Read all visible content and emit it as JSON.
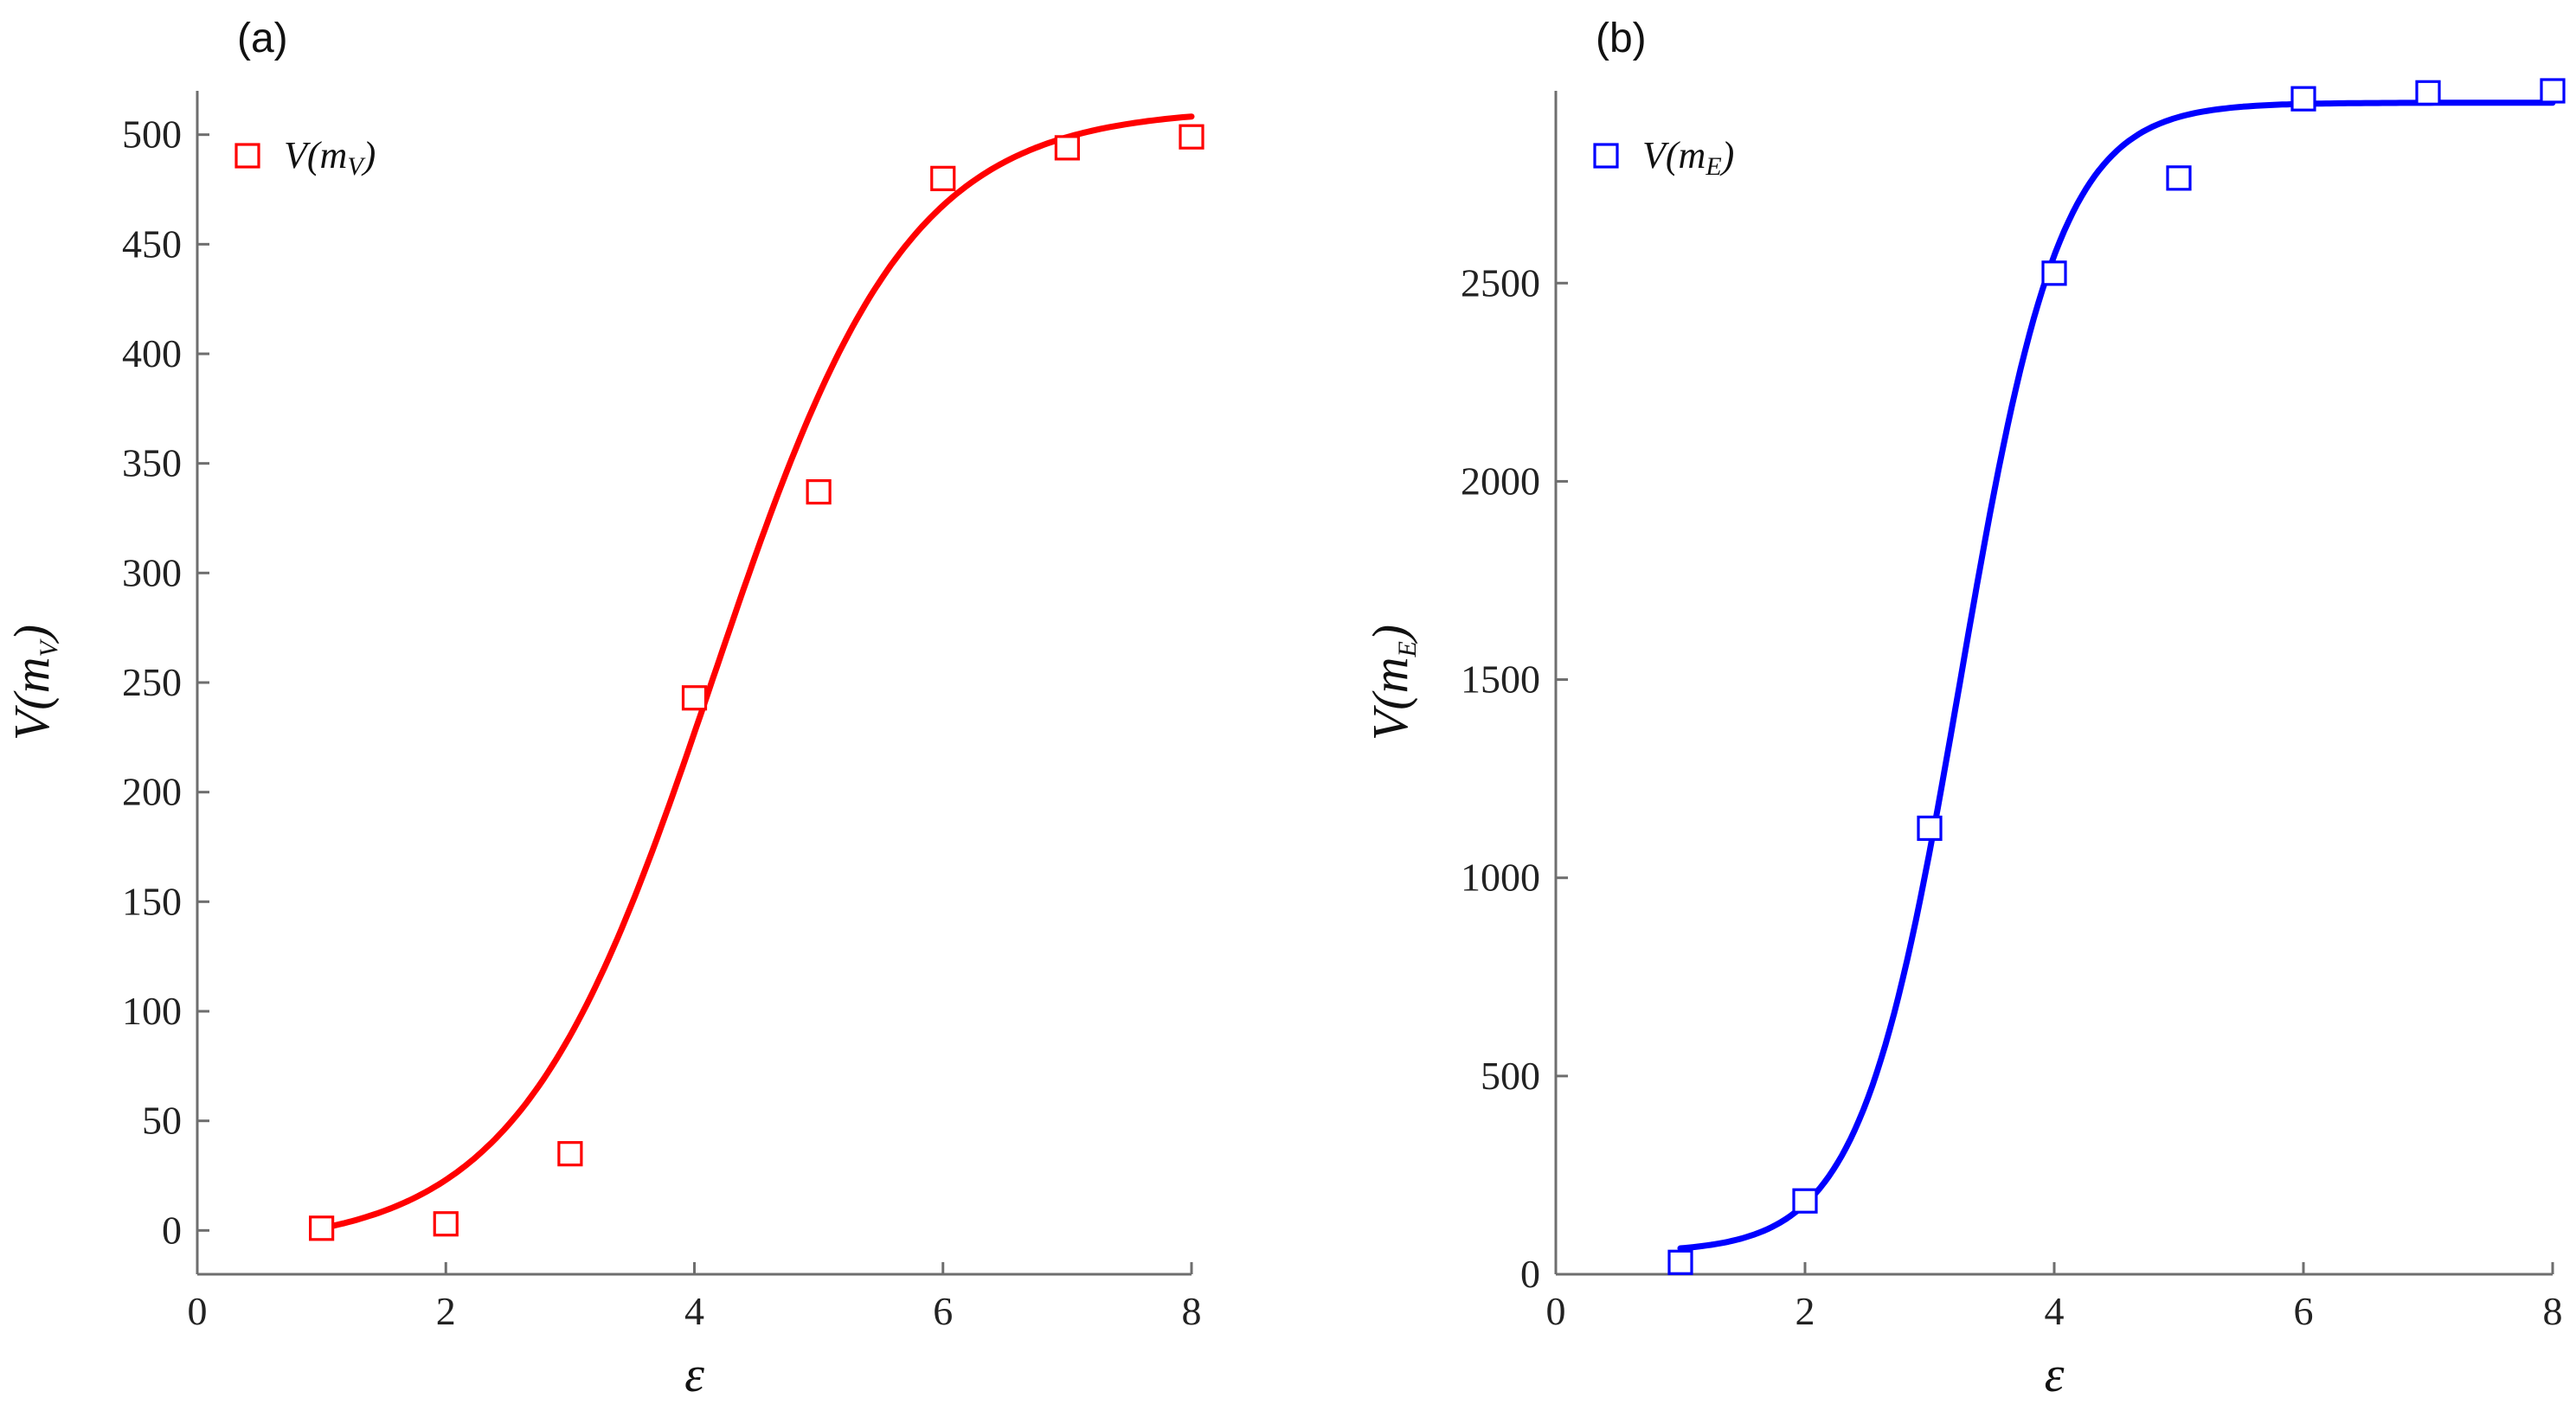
{
  "chart_data": [
    {
      "type": "scatter",
      "panel_label": "(a)",
      "xlabel": "ε",
      "ylabel_main": "V(m",
      "ylabel_sub": "V",
      "ylabel_close": ")",
      "legend_main": "V(m",
      "legend_sub": "V",
      "legend_close": ")",
      "legend_position": "top-left",
      "color": "#ff0000",
      "xlim": [
        0,
        8
      ],
      "ylim": [
        -20,
        520
      ],
      "xticks": [
        0,
        2,
        4,
        6,
        8
      ],
      "yticks": [
        0,
        50,
        100,
        150,
        200,
        250,
        300,
        350,
        400,
        450,
        500
      ],
      "grid": false,
      "points": {
        "x": [
          1,
          2,
          3,
          4,
          5,
          6,
          7,
          8
        ],
        "y": [
          1,
          3,
          35,
          243,
          337,
          480,
          494,
          499
        ]
      },
      "fit": {
        "A1": -8,
        "A2": 512,
        "x0": 4.15,
        "s": 0.78,
        "x_range": [
          1,
          8
        ]
      }
    },
    {
      "type": "scatter",
      "panel_label": "(b)",
      "xlabel": "ε",
      "ylabel_main": "V(m",
      "ylabel_sub": "E",
      "ylabel_close": ")",
      "legend_main": "V(m",
      "legend_sub": "E",
      "legend_close": ")",
      "legend_position": "top-left",
      "color": "#0000ff",
      "xlim": [
        0,
        8
      ],
      "ylim": [
        0,
        2985
      ],
      "xticks": [
        0,
        2,
        4,
        6,
        8
      ],
      "yticks": [
        0,
        500,
        1000,
        1500,
        2000,
        2500
      ],
      "grid": false,
      "points": {
        "x": [
          1,
          2,
          3,
          4,
          5,
          6,
          7,
          8
        ],
        "y": [
          30,
          185,
          1125,
          2525,
          2765,
          2965,
          2980,
          2985
        ]
      },
      "fit": {
        "A1": 55,
        "A2": 2955,
        "x0": 3.25,
        "s": 0.4,
        "x_range": [
          1,
          8
        ]
      }
    }
  ]
}
